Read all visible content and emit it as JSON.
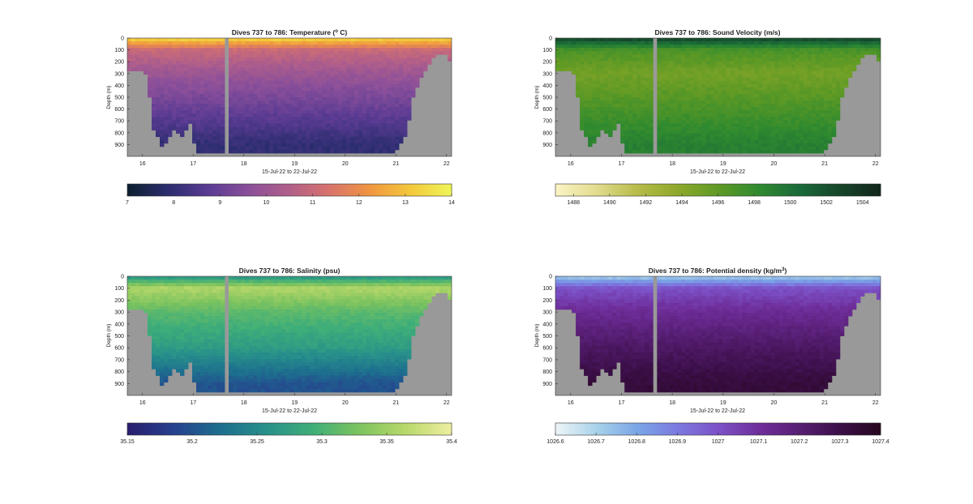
{
  "figure": {
    "panels": [
      {
        "id": "temperature",
        "title_prefix": "Dives 737 to 786: Temperature (",
        "title_sup": "o",
        "title_suffix": " C)",
        "ylabel": "Depth (m)",
        "xlabel": "15-Jul-22 to 22-Jul-22",
        "colorbar_ticks": [
          "7",
          "8",
          "9",
          "10",
          "11",
          "12",
          "13",
          "14"
        ],
        "colormap": [
          "#0c1f2e",
          "#2b2d6e",
          "#5a3b93",
          "#8a4f9a",
          "#b15f8a",
          "#d8736c",
          "#f0963f",
          "#f3c93c",
          "#eef55a"
        ]
      },
      {
        "id": "sound_velocity",
        "title_prefix": "Dives 737 to 786: Sound Velocity (m/s)",
        "title_sup": "",
        "title_suffix": "",
        "ylabel": "Depth (m)",
        "xlabel": "15-Jul-22 to 22-Jul-22",
        "colorbar_ticks": [
          "1488",
          "1490",
          "1492",
          "1494",
          "1496",
          "1498",
          "1500",
          "1502",
          "1504"
        ],
        "colormap": [
          "#fbf4c4",
          "#e2dc8f",
          "#b8bc4a",
          "#8ea82a",
          "#5f9a25",
          "#2f8a2f",
          "#1a6a38",
          "#16452a",
          "#11261a"
        ]
      },
      {
        "id": "salinity",
        "title_prefix": "Dives 737 to 786: Salinity (psu)",
        "title_sup": "",
        "title_suffix": "",
        "ylabel": "Depth (m)",
        "xlabel": "15-Jul-22 to 22-Jul-22",
        "colorbar_ticks": [
          "35.15",
          "35.2",
          "35.25",
          "35.3",
          "35.35",
          "35.4"
        ],
        "colormap": [
          "#2a1d6e",
          "#26408e",
          "#1d6e8e",
          "#28908a",
          "#3fae79",
          "#7cc35f",
          "#b8d86a",
          "#eeeea0"
        ]
      },
      {
        "id": "potential_density",
        "title_prefix": "Dives 737 to 786: Potential density (kg/m",
        "title_sup": "3",
        "title_suffix": ")",
        "ylabel": "Depth (m)",
        "xlabel": "15-Jul-22 to 22-Jul-22",
        "colorbar_ticks": [
          "1026.6",
          "1026.7",
          "1026.8",
          "1026.9",
          "1027",
          "1027.1",
          "1027.2",
          "1027.3",
          "1027.4"
        ],
        "colormap": [
          "#eef5f7",
          "#a9d2ea",
          "#7aa6e6",
          "#7c7ae0",
          "#7c52c7",
          "#6f2f9c",
          "#571e73",
          "#3b0f48",
          "#27071f"
        ]
      }
    ]
  },
  "chart_data": [
    {
      "type": "heatmap",
      "title": "Dives 737 to 786: Temperature (° C)",
      "xlabel": "15-Jul-22 to 22-Jul-22",
      "ylabel": "Depth (m)",
      "x_ticks": [
        16,
        17,
        18,
        19,
        20,
        21,
        22
      ],
      "y_ticks": [
        0,
        100,
        200,
        300,
        400,
        500,
        600,
        700,
        800,
        900
      ],
      "xlim": [
        15.7,
        22.1
      ],
      "ylim": [
        0,
        1000
      ],
      "y_reversed": true,
      "color_range": [
        7,
        14
      ],
      "approx_profile": {
        "depth": [
          0,
          100,
          300,
          600,
          900
        ],
        "value": [
          13.5,
          11.0,
          10.0,
          9.0,
          8.0
        ]
      }
    },
    {
      "type": "heatmap",
      "title": "Dives 737 to 786: Sound Velocity (m/s)",
      "xlabel": "15-Jul-22 to 22-Jul-22",
      "ylabel": "Depth (m)",
      "x_ticks": [
        16,
        17,
        18,
        19,
        20,
        21,
        22
      ],
      "y_ticks": [
        0,
        100,
        200,
        300,
        400,
        500,
        600,
        700,
        800,
        900
      ],
      "xlim": [
        15.7,
        22.1
      ],
      "ylim": [
        0,
        1000
      ],
      "y_reversed": true,
      "color_range": [
        1487,
        1505
      ],
      "approx_profile": {
        "depth": [
          0,
          100,
          300,
          600,
          900
        ],
        "value": [
          1503,
          1497,
          1495,
          1497,
          1499
        ]
      }
    },
    {
      "type": "heatmap",
      "title": "Dives 737 to 786: Salinity (psu)",
      "xlabel": "15-Jul-22 to 22-Jul-22",
      "ylabel": "Depth (m)",
      "x_ticks": [
        16,
        17,
        18,
        19,
        20,
        21,
        22
      ],
      "y_ticks": [
        0,
        100,
        200,
        300,
        400,
        500,
        600,
        700,
        800,
        900
      ],
      "xlim": [
        15.7,
        22.1
      ],
      "ylim": [
        0,
        1000
      ],
      "y_reversed": true,
      "color_range": [
        35.15,
        35.4
      ],
      "approx_profile": {
        "depth": [
          0,
          100,
          300,
          600,
          900
        ],
        "value": [
          35.26,
          35.36,
          35.31,
          35.27,
          35.2
        ]
      }
    },
    {
      "type": "heatmap",
      "title": "Dives 737 to 786: Potential density (kg/m³)",
      "xlabel": "15-Jul-22 to 22-Jul-22",
      "ylabel": "Depth (m)",
      "x_ticks": [
        16,
        17,
        18,
        19,
        20,
        21,
        22
      ],
      "y_ticks": [
        0,
        100,
        200,
        300,
        400,
        500,
        600,
        700,
        800,
        900
      ],
      "xlim": [
        15.7,
        22.1
      ],
      "ylim": [
        0,
        1000
      ],
      "y_reversed": true,
      "color_range": [
        1026.6,
        1027.4
      ],
      "approx_profile": {
        "depth": [
          0,
          100,
          300,
          600,
          900
        ],
        "value": [
          1026.7,
          1027.0,
          1027.12,
          1027.24,
          1027.33
        ]
      }
    }
  ]
}
